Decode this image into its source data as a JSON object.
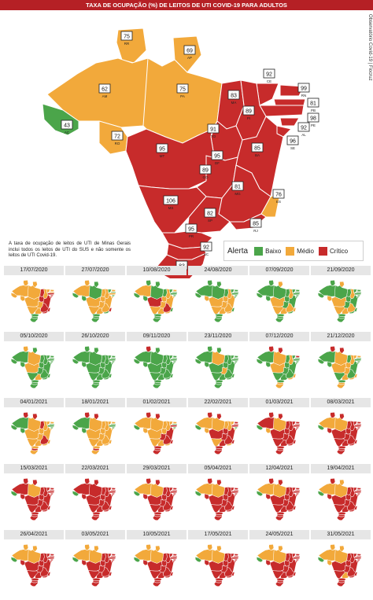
{
  "title": "TAXA DE OCUPAÇÃO (%) DE LEITOS DE UTI COVID-19 PARA ADULTOS",
  "credit": "Observatório Covid-19 | Fiocruz",
  "note": "A taxa de ocupação de leitos de UTI de Minas Gerais inclui todos os leitos de UTI do SUS e não somente os leitos de UTI Covid-19.",
  "legend": {
    "title": "Alerta",
    "items": [
      {
        "label": "Baixo",
        "color": "#4ba54a"
      },
      {
        "label": "Médio",
        "color": "#f2a93b"
      },
      {
        "label": "Crítico",
        "color": "#c72b2b"
      }
    ]
  },
  "colors": {
    "green": "#4ba54a",
    "yellow": "#f2a93b",
    "red": "#c72b2b"
  },
  "states": [
    {
      "uf": "RR",
      "value": "75",
      "level": "yellow"
    },
    {
      "uf": "AP",
      "value": "69",
      "level": "yellow"
    },
    {
      "uf": "AM",
      "value": "62",
      "level": "yellow"
    },
    {
      "uf": "PA",
      "value": "75",
      "level": "yellow"
    },
    {
      "uf": "AC",
      "value": "43",
      "level": "green"
    },
    {
      "uf": "RO",
      "value": "72",
      "level": "yellow"
    },
    {
      "uf": "MA",
      "value": "83",
      "level": "red"
    },
    {
      "uf": "CE",
      "value": "92",
      "level": "red"
    },
    {
      "uf": "RN",
      "value": "99",
      "level": "red"
    },
    {
      "uf": "PB",
      "value": "81",
      "level": "red"
    },
    {
      "uf": "PE",
      "value": "98",
      "level": "red"
    },
    {
      "uf": "AL",
      "value": "92",
      "level": "red"
    },
    {
      "uf": "SE",
      "value": "96",
      "level": "red"
    },
    {
      "uf": "PI",
      "value": "89",
      "level": "red"
    },
    {
      "uf": "TO",
      "value": "91",
      "level": "red"
    },
    {
      "uf": "BA",
      "value": "85",
      "level": "red"
    },
    {
      "uf": "MT",
      "value": "95",
      "level": "red"
    },
    {
      "uf": "DF",
      "value": "95",
      "level": "red"
    },
    {
      "uf": "GO",
      "value": "89",
      "level": "red"
    },
    {
      "uf": "MG",
      "value": "81",
      "level": "red"
    },
    {
      "uf": "ES",
      "value": "76",
      "level": "yellow"
    },
    {
      "uf": "MS",
      "value": "106",
      "level": "red"
    },
    {
      "uf": "SP",
      "value": "82",
      "level": "red"
    },
    {
      "uf": "RJ",
      "value": "85",
      "level": "red"
    },
    {
      "uf": "PR",
      "value": "95",
      "level": "red"
    },
    {
      "uf": "SC",
      "value": "92",
      "level": "red"
    },
    {
      "uf": "RS",
      "value": "83",
      "level": "red"
    }
  ],
  "small_maps": [
    {
      "date": "17/07/2020",
      "levels": "YYYYYYRYYYRRRYRRYYYRRYYRGGG"
    },
    {
      "date": "27/07/2020",
      "levels": "YGYGGGYGYGYGYYYYYYYYRYYGGGG"
    },
    {
      "date": "10/08/2020",
      "levels": "GGYGGGGGYGGGYYYYRYYRGYYYGGG"
    },
    {
      "date": "24/08/2020",
      "levels": "GGGGGYGGGGGGGYYYYRYYGYYYGGG"
    },
    {
      "date": "07/09/2020",
      "levels": "GYGGGGGGGGGGGYGGYYGYYYYGGGG"
    },
    {
      "date": "21/09/2020",
      "levels": "GYGGGYGGGGGGGYGGYYGYGYYGGGG"
    },
    {
      "date": "05/10/2020",
      "levels": "YGGYGGGGGGGGGGGGYGGGGGYGGGG"
    },
    {
      "date": "26/10/2020",
      "levels": "GGGGGGGGGGGGGGGGGGGGGGGGGGG"
    },
    {
      "date": "09/11/2020",
      "levels": "RGGGGGGGGGGGGGGGGGGGGGGGGGG"
    },
    {
      "date": "23/11/2020",
      "levels": "GGGYGGGGGGGGGGGGGGYGGGGGGGG"
    },
    {
      "date": "07/12/2020",
      "levels": "RRGYGGGGRGGGGYGGYYGGYGGYGYY"
    },
    {
      "date": "21/12/2020",
      "levels": "RRGYGGGYYGGGGYYGYYYGYGYYGYY"
    },
    {
      "date": "04/01/2021",
      "levels": "RRGYGGRYYGGGYYYYYYYRYYYYYRY"
    },
    {
      "date": "18/01/2021",
      "levels": "RRGYGGYYYGGGYYYYYYYYYYYYYRY"
    },
    {
      "date": "01/02/2021",
      "levels": "RRYYGYYYYGRGYYYRYYRRRYYYRRR"
    },
    {
      "date": "22/02/2021",
      "levels": "RRYYGYYYRRRGYYRRRRRRRYRYRRR"
    },
    {
      "date": "01/03/2021",
      "levels": "RRRYGYRRRRRRRRRRRRRRRRRRRRR"
    },
    {
      "date": "08/03/2021",
      "levels": "RRYYGRRRRRRRRRRRRRRRRRRRRRR"
    },
    {
      "date": "15/03/2021",
      "levels": "RRRYGRRRRRRRRRRRRRRRRRRRRRR"
    },
    {
      "date": "22/03/2021",
      "levels": "RRRRGRRRRRRRRRRRRRRRRRRRRRR"
    },
    {
      "date": "29/03/2021",
      "levels": "RRYYGRRRRRRRRRRRRRRRRRRRRRR"
    },
    {
      "date": "05/04/2021",
      "levels": "RRYYGRRRRRRRRRRRRRRRRRRRRRR"
    },
    {
      "date": "12/04/2021",
      "levels": "RRYYGRRRRRRRRRRRRRRRRRRRRRR"
    },
    {
      "date": "19/04/2021",
      "levels": "RYYYGRRRRRRRRRRRRRRRRRRRRRR"
    },
    {
      "date": "26/04/2021",
      "levels": "YYYYGRRRRRRRRRRRRRRRRRRRRRR"
    },
    {
      "date": "03/05/2021",
      "levels": "YYYYGRRRRRRRRRRRRRRRRRRRRRR"
    },
    {
      "date": "10/05/2021",
      "levels": "YYYYGRRRRRRRRRRRRRRRRRRRRRR"
    },
    {
      "date": "17/05/2021",
      "levels": "YYYYGRRRRRRRRRRRRRRRRRRRRRR"
    },
    {
      "date": "24/05/2021",
      "levels": "YYYYGRRRRRRRRRRRRRRRRRRRRRR"
    },
    {
      "date": "31/05/2021",
      "levels": "YYYYGYRRRRRRRRRRRRRRRRYRRRR"
    }
  ]
}
